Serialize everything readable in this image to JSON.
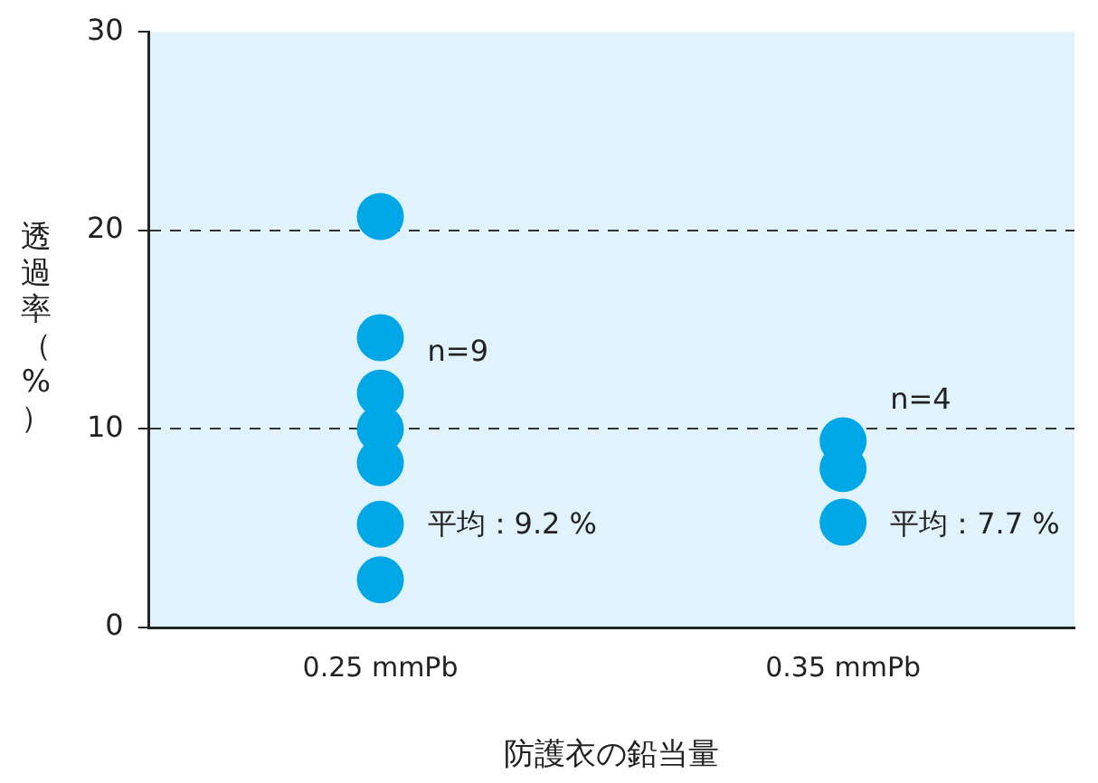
{
  "chart_data": {
    "type": "scatter",
    "xlabel": "防護衣の鉛当量",
    "ylabel": "透過率（%）",
    "categories": [
      "0.25 mmPb",
      "0.35 mmPb"
    ],
    "series": [
      {
        "color": "#00a7e6",
        "x": [
          "0.25 mmPb",
          "0.25 mmPb",
          "0.25 mmPb",
          "0.25 mmPb",
          "0.25 mmPb",
          "0.25 mmPb",
          "0.25 mmPb"
        ],
        "values": [
          20.7,
          14.6,
          11.8,
          10.0,
          8.3,
          5.2,
          2.4
        ]
      },
      {
        "color": "#00a7e6",
        "x": [
          "0.35 mmPb",
          "0.35 mmPb",
          "0.35 mmPb"
        ],
        "values": [
          9.4,
          8.0,
          5.3
        ]
      }
    ],
    "ylim": [
      0,
      30
    ],
    "yticks": [
      0,
      10,
      20,
      30
    ],
    "grid": "y",
    "line_style": "dashed",
    "marker": "circle",
    "legend": false,
    "annotations": [
      "n=9",
      "平均：9.2 %",
      "n=4",
      "平均：7.7 %"
    ]
  }
}
